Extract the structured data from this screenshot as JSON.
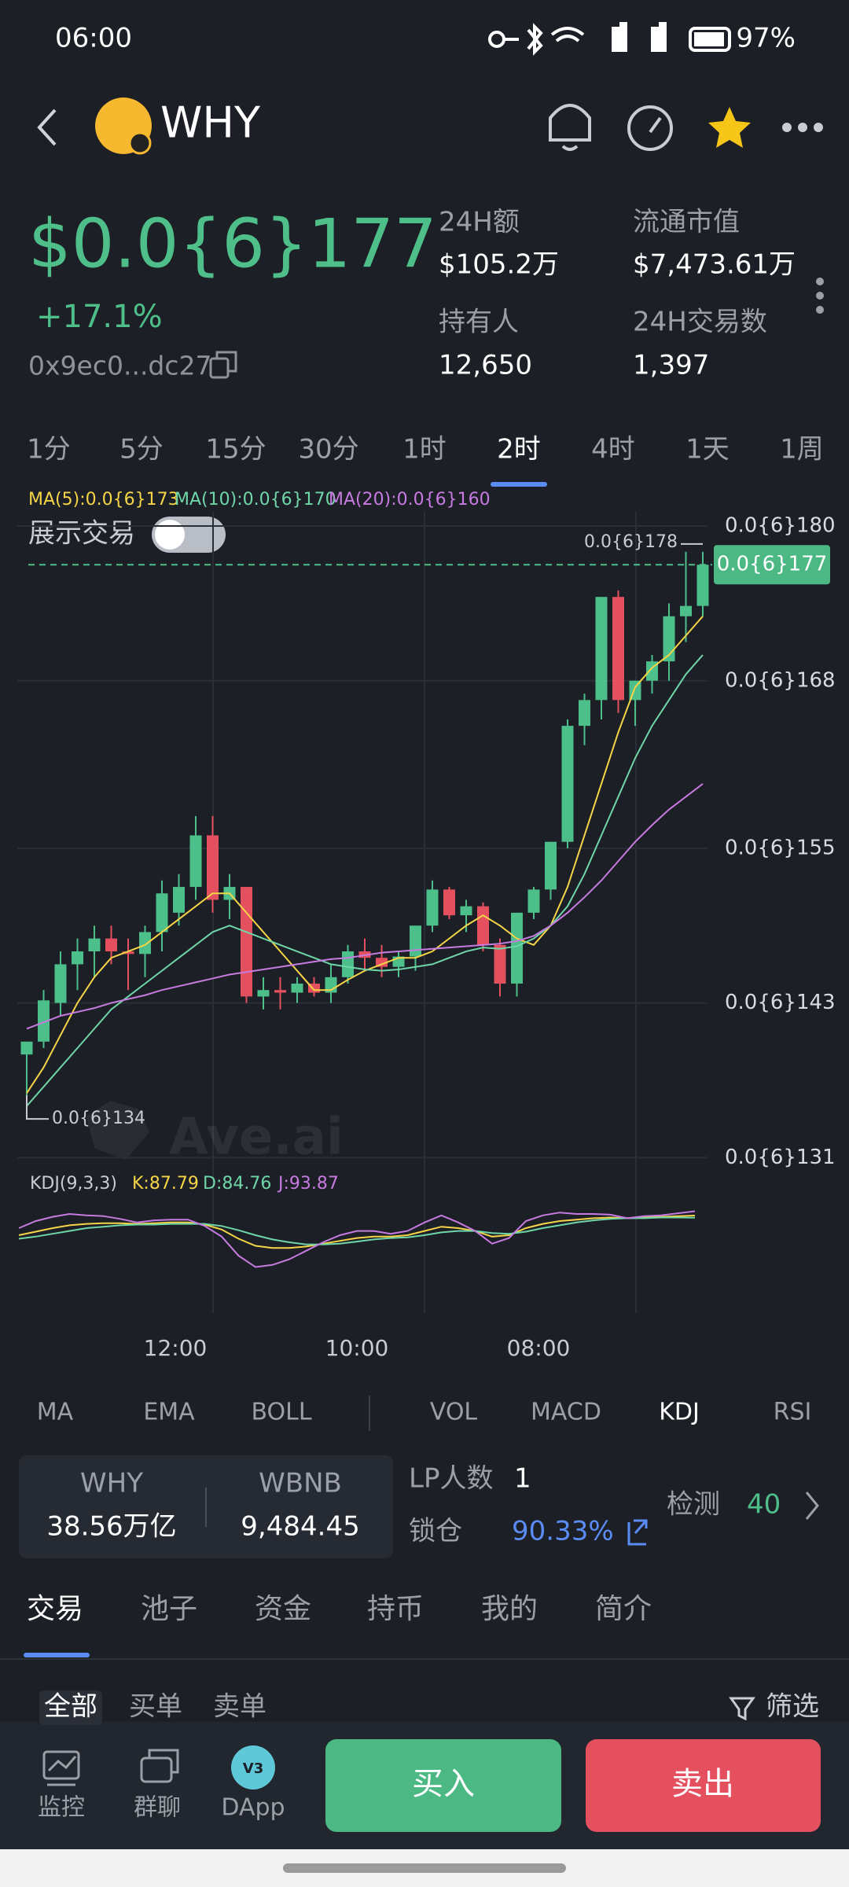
{
  "status_bar": {
    "time": "06:00",
    "battery": "97%"
  },
  "header": {
    "token": "WHY"
  },
  "price": {
    "value": "$0.0{6}177",
    "change": "+17.1%",
    "address": "0x9ec0...dc27"
  },
  "stats": [
    {
      "label": "24H额",
      "value": "$105.2万"
    },
    {
      "label": "流通市值",
      "value": "$7,473.61万"
    },
    {
      "label": "持有人",
      "value": "12,650"
    },
    {
      "label": "24H交易数",
      "value": "1,397"
    }
  ],
  "intervals": [
    "1分",
    "5分",
    "15分",
    "30分",
    "1时",
    "2时",
    "4时",
    "1天",
    "1周"
  ],
  "show_trades": "展示交易",
  "chart_data": {
    "type": "candlestick",
    "watermark": "Ave.ai",
    "ylim": [
      129.8,
      181.1
    ],
    "yticks": [
      {
        "value": 180,
        "label": "0.0{6}180"
      },
      {
        "value": 168,
        "label": "0.0{6}168"
      },
      {
        "value": 155,
        "label": "0.0{6}155"
      },
      {
        "value": 143,
        "label": "0.0{6}143"
      },
      {
        "value": 131,
        "label": "0.0{6}131"
      }
    ],
    "x_labels": [
      "12:00",
      "10:00",
      "08:00"
    ],
    "up_color": "#4cbf8a",
    "down_color": "#e5505f",
    "open": [
      139,
      140,
      143,
      146,
      147,
      148,
      147,
      146.8,
      148.5,
      150,
      152,
      156,
      151,
      152,
      143.5,
      144,
      143.8,
      144.5,
      143.8,
      145,
      147,
      146.5,
      145.8,
      146.6,
      149,
      151.8,
      149.8,
      150.5,
      147.5,
      144.5,
      150,
      151.8,
      155.5,
      164.5,
      166.5,
      174.5,
      166.5,
      168,
      169.5,
      173,
      173.8
    ],
    "high": [
      140,
      144,
      147,
      148,
      149,
      149,
      148,
      149,
      152.5,
      153,
      157.5,
      157.5,
      153,
      152,
      145,
      145,
      145,
      145,
      146,
      147.5,
      148,
      147.5,
      147,
      149,
      152.5,
      152,
      151,
      150.8,
      148,
      150,
      152,
      155.5,
      165,
      167,
      174.5,
      175,
      168,
      170,
      174,
      178,
      178
    ],
    "low": [
      134,
      139.5,
      142,
      144,
      145,
      146,
      144,
      145,
      147,
      149,
      151,
      150,
      149.5,
      143,
      142.5,
      142.5,
      143,
      143.5,
      143,
      144.5,
      145.5,
      145,
      145,
      145.5,
      148.5,
      149.5,
      148.5,
      147,
      143.5,
      143.5,
      149.5,
      151,
      155,
      163,
      165,
      165.5,
      164.5,
      167,
      168,
      171,
      173
    ],
    "close": [
      140,
      143.2,
      146,
      147,
      148,
      147,
      146.8,
      148.5,
      151.5,
      152,
      156,
      151,
      152,
      143.5,
      144,
      143.8,
      144.5,
      143.8,
      145,
      147,
      146.5,
      145.8,
      146.6,
      149,
      151.8,
      149.8,
      150.5,
      147.5,
      144.5,
      150,
      151.8,
      155.5,
      164.5,
      166.5,
      174.5,
      166.5,
      168,
      169.5,
      173,
      173.8,
      177
    ],
    "ma": [
      {
        "name": "MA(5):0.0{6}173",
        "color": "#f5d547",
        "values": [
          136,
          138,
          140.5,
          143,
          145,
          146.5,
          147,
          147.5,
          148.5,
          149.5,
          150.5,
          151.5,
          151.5,
          150,
          148.5,
          147,
          145.5,
          144,
          144,
          144.8,
          145.5,
          146,
          146.5,
          146.5,
          147,
          148,
          149,
          149.8,
          149,
          148,
          147.5,
          149,
          152,
          156,
          160,
          164,
          167.5,
          169,
          170,
          171.5,
          173
        ]
      },
      {
        "name": "MA(10):0.0{6}170",
        "color": "#6fd6a8",
        "values": [
          135,
          136.5,
          138,
          139.5,
          141,
          142.5,
          143.5,
          144.5,
          145.5,
          146.5,
          147.5,
          148.5,
          149,
          148.5,
          148,
          147.5,
          147,
          146.5,
          146,
          145.8,
          145.6,
          145.5,
          145.6,
          145.8,
          146,
          146.5,
          147,
          147.3,
          147.2,
          147.4,
          148,
          149,
          150.5,
          153,
          156,
          159,
          162,
          164.5,
          166.5,
          168.5,
          170
        ]
      },
      {
        "name": "MA(20):0.0{6}160",
        "color": "#c77ae0",
        "values": [
          141,
          141.5,
          142,
          142.3,
          142.6,
          143,
          143.3,
          143.6,
          144,
          144.3,
          144.6,
          144.9,
          145.2,
          145.4,
          145.6,
          145.8,
          146,
          146.2,
          146.4,
          146.5,
          146.7,
          146.9,
          147,
          147.1,
          147.2,
          147.3,
          147.4,
          147.5,
          147.6,
          147.8,
          148.2,
          149,
          150,
          151.2,
          152.5,
          154,
          155.5,
          156.8,
          158,
          159,
          160
        ]
      }
    ],
    "last_price": {
      "value": 177,
      "label": "0.0{6}177"
    },
    "high_mark": {
      "value": 178,
      "label": "0.0{6}178"
    },
    "low_mark": {
      "value": 134,
      "label": "0.0{6}134"
    },
    "kdj": {
      "title": "KDJ(9,3,3)",
      "ylim": [
        0,
        100
      ],
      "series": [
        {
          "name": "K:87.79",
          "color": "#f5d547",
          "values": [
            60,
            65,
            70,
            74,
            76,
            77,
            77,
            76,
            77,
            78,
            78,
            75,
            68,
            55,
            45,
            42,
            42,
            44,
            48,
            52,
            56,
            58,
            58,
            60,
            66,
            72,
            70,
            66,
            58,
            60,
            70,
            76,
            80,
            82,
            84,
            85,
            84,
            85,
            86,
            87,
            87.79
          ]
        },
        {
          "name": "D:84.76",
          "color": "#6fd6a8",
          "values": [
            55,
            58,
            62,
            66,
            70,
            72,
            74,
            75,
            75,
            76,
            76,
            76,
            73,
            67,
            60,
            54,
            50,
            47,
            47,
            48,
            51,
            54,
            56,
            57,
            60,
            64,
            66,
            66,
            63,
            62,
            65,
            70,
            74,
            78,
            81,
            83,
            84,
            84,
            85,
            85,
            84.76
          ]
        },
        {
          "name": "J:93.87",
          "color": "#c77ae0",
          "values": [
            70,
            80,
            86,
            90,
            88,
            87,
            83,
            78,
            81,
            82,
            82,
            73,
            58,
            31,
            15,
            18,
            26,
            38,
            50,
            60,
            66,
            66,
            62,
            66,
            78,
            88,
            78,
            66,
            48,
            56,
            80,
            88,
            92,
            90,
            90,
            89,
            84,
            87,
            88,
            91,
            93.87
          ]
        }
      ]
    }
  },
  "indicators": [
    "MA",
    "EMA",
    "BOLL",
    "VOL",
    "MACD",
    "KDJ",
    "RSI"
  ],
  "pool": {
    "token_a": "WHY",
    "amount_a": "38.56万亿",
    "token_b": "WBNB",
    "amount_b": "9,484.45",
    "lp_label": "LP人数",
    "lp_count": "1",
    "lock_label": "锁仓",
    "lock_value": "90.33%",
    "check_label": "检测",
    "check_value": "40"
  },
  "tabs": [
    "交易",
    "池子",
    "资金",
    "持币",
    "我的",
    "简介"
  ],
  "filters": [
    "全部",
    "买单",
    "卖单"
  ],
  "filter_button": "筛选",
  "nav": [
    "监控",
    "群聊",
    "DApp"
  ],
  "dapp_badge": "V3",
  "buy": "买入",
  "sell": "卖出"
}
